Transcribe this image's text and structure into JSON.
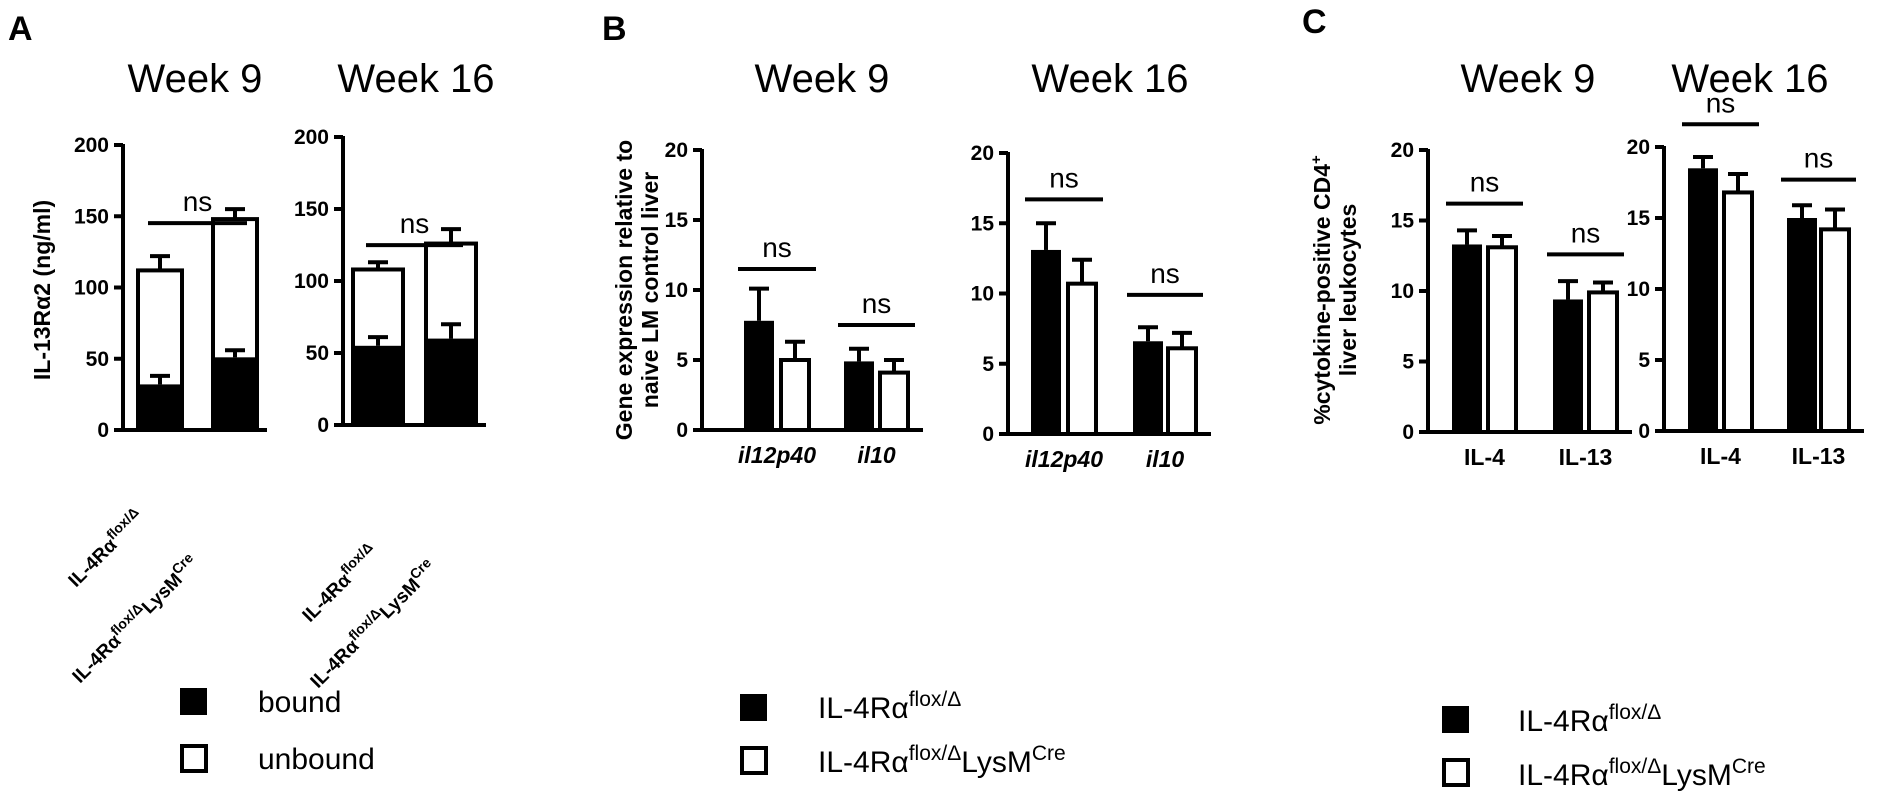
{
  "panels": {
    "A": {
      "letter": "A",
      "ylabel": "IL-13Rα2 (ng/ml)",
      "legend": [
        "bound",
        "unbound"
      ]
    },
    "B": {
      "letter": "B",
      "ylabel_1": "Gene expression relative to",
      "ylabel_2": "naive LM control liver",
      "legend": [
        "IL-4Rα",
        "IL-4Rα"
      ]
    },
    "C": {
      "letter": "C",
      "ylabel_1": "%cytokine-positive CD4",
      "ylabel_sup": "+",
      "ylabel_2": "liver leukocytes",
      "legend": [
        "IL-4Rα",
        "IL-4Rα"
      ]
    }
  },
  "genotypes": {
    "ctrl_main": "IL-4Rα",
    "ctrl_sup": "flox/Δ",
    "cre_main": "IL-4Rα",
    "cre_sup": "flox/Δ",
    "cre_tail": "LysM",
    "cre_tail_sup": "Cre"
  },
  "sig_label": "ns",
  "chart_data": [
    {
      "type": "bar",
      "stacked": true,
      "title": "Week 9",
      "ylabel": "IL-13Rα2 (ng/ml)",
      "yticks": [
        0,
        50,
        100,
        150,
        200
      ],
      "ylim": [
        0,
        200
      ],
      "categories": [
        "IL-4Rα flox/Δ",
        "IL-4Rα flox/Δ LysM Cre"
      ],
      "series": [
        {
          "name": "bound",
          "values": [
            32,
            51
          ],
          "errors": [
            6,
            5
          ],
          "color": "#000000"
        },
        {
          "name": "unbound",
          "values": [
            80,
            97
          ],
          "errors": [
            10,
            7
          ],
          "color": "#ffffff"
        }
      ],
      "totals": [
        112,
        148
      ],
      "annotations": [
        {
          "text": "ns",
          "between": [
            0,
            1
          ]
        }
      ]
    },
    {
      "type": "bar",
      "stacked": true,
      "title": "Week 16",
      "ylabel": "",
      "yticks": [
        0,
        50,
        100,
        150,
        200
      ],
      "ylim": [
        0,
        200
      ],
      "categories": [
        "IL-4Rα flox/Δ",
        "IL-4Rα flox/Δ LysM Cre"
      ],
      "series": [
        {
          "name": "bound",
          "values": [
            55,
            60
          ],
          "errors": [
            6,
            10
          ],
          "color": "#000000"
        },
        {
          "name": "unbound",
          "values": [
            53,
            66
          ],
          "errors": [
            5,
            10
          ],
          "color": "#ffffff"
        }
      ],
      "totals": [
        108,
        126
      ],
      "annotations": [
        {
          "text": "ns",
          "between": [
            0,
            1
          ]
        }
      ]
    },
    {
      "type": "bar",
      "title": "Week 9",
      "ylabel": "Gene expression relative to naive LM control liver",
      "yticks": [
        0,
        5,
        10,
        15,
        20
      ],
      "ylim": [
        0,
        20
      ],
      "categories": [
        "il12p40",
        "il10"
      ],
      "italic_categories": true,
      "series": [
        {
          "name": "IL-4Rα flox/Δ",
          "values": [
            7.8,
            4.9
          ],
          "errors": [
            2.3,
            0.9
          ],
          "color": "#000000"
        },
        {
          "name": "IL-4Rα flox/Δ LysM Cre",
          "values": [
            5.0,
            4.1
          ],
          "errors": [
            1.3,
            0.9
          ],
          "color": "#ffffff"
        }
      ],
      "annotations": [
        {
          "text": "ns",
          "group": 0,
          "y": 11.5
        },
        {
          "text": "ns",
          "group": 1,
          "y": 7.5
        }
      ]
    },
    {
      "type": "bar",
      "title": "Week 16",
      "ylabel": "",
      "yticks": [
        0,
        5,
        10,
        15,
        20
      ],
      "ylim": [
        0,
        20
      ],
      "categories": [
        "il12p40",
        "il10"
      ],
      "italic_categories": true,
      "series": [
        {
          "name": "IL-4Rα flox/Δ",
          "values": [
            13.1,
            6.6
          ],
          "errors": [
            1.9,
            1.0
          ],
          "color": "#000000"
        },
        {
          "name": "IL-4Rα flox/Δ LysM Cre",
          "values": [
            10.7,
            6.1
          ],
          "errors": [
            1.7,
            1.1
          ],
          "color": "#ffffff"
        }
      ],
      "annotations": [
        {
          "text": "ns",
          "group": 0,
          "y": 16.7
        },
        {
          "text": "ns",
          "group": 1,
          "y": 9.9
        }
      ]
    },
    {
      "type": "bar",
      "title": "Week 9",
      "ylabel": "%cytokine-positive CD4+ liver leukocytes",
      "yticks": [
        0,
        5,
        10,
        15,
        20
      ],
      "ylim": [
        0,
        20
      ],
      "categories": [
        "IL-4",
        "IL-13"
      ],
      "series": [
        {
          "name": "IL-4Rα flox/Δ",
          "values": [
            13.3,
            9.4
          ],
          "errors": [
            1.0,
            1.3
          ],
          "color": "#000000"
        },
        {
          "name": "IL-4Rα flox/Δ LysM Cre",
          "values": [
            13.1,
            9.9
          ],
          "errors": [
            0.8,
            0.7
          ],
          "color": "#ffffff"
        }
      ],
      "annotations": [
        {
          "text": "ns",
          "group": 0,
          "y": 16.2
        },
        {
          "text": "ns",
          "group": 1,
          "y": 12.6
        }
      ]
    },
    {
      "type": "bar",
      "title": "Week 16",
      "ylabel": "",
      "yticks": [
        0,
        5,
        10,
        15,
        20
      ],
      "ylim": [
        0,
        20
      ],
      "categories": [
        "IL-4",
        "IL-13"
      ],
      "series": [
        {
          "name": "IL-4Rα flox/Δ",
          "values": [
            18.5,
            15.0
          ],
          "errors": [
            0.8,
            0.9
          ],
          "color": "#000000"
        },
        {
          "name": "IL-4Rα flox/Δ LysM Cre",
          "values": [
            16.8,
            14.2
          ],
          "errors": [
            1.3,
            1.4
          ],
          "color": "#ffffff"
        }
      ],
      "annotations": [
        {
          "text": "ns",
          "group": 0,
          "y": 21.6
        },
        {
          "text": "ns",
          "group": 1,
          "y": 17.7
        }
      ]
    }
  ]
}
